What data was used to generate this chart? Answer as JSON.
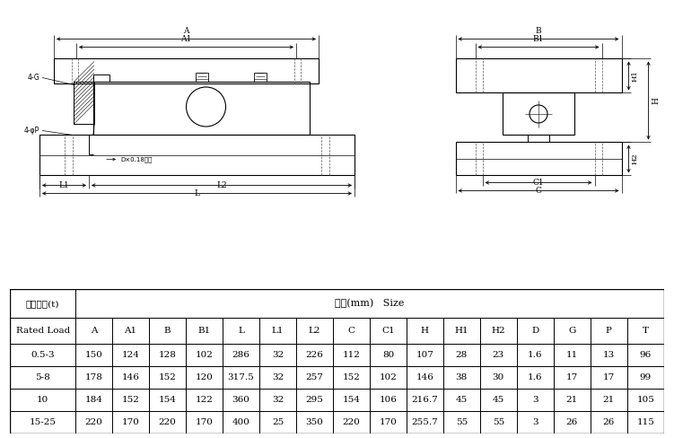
{
  "table_header_row1_col0": "额定载荷(t)",
  "table_header_row1_col1": "尺寸(mm)   Size",
  "table_header_row2": [
    "Rated Load",
    "A",
    "A1",
    "B",
    "B1",
    "L",
    "L1",
    "L2",
    "C",
    "C1",
    "H",
    "H1",
    "H2",
    "D",
    "G",
    "P",
    "T"
  ],
  "table_data": [
    [
      "0.5-3",
      "150",
      "124",
      "128",
      "102",
      "286",
      "32",
      "226",
      "112",
      "80",
      "107",
      "28",
      "23",
      "1.6",
      "11",
      "13",
      "96"
    ],
    [
      "5-8",
      "178",
      "146",
      "152",
      "120",
      "317.5",
      "32",
      "257",
      "152",
      "102",
      "146",
      "38",
      "30",
      "1.6",
      "17",
      "17",
      "99"
    ],
    [
      "10",
      "184",
      "152",
      "154",
      "122",
      "360",
      "32",
      "295",
      "154",
      "106",
      "216.7",
      "45",
      "45",
      "3",
      "21",
      "21",
      "105"
    ],
    [
      "15-25",
      "220",
      "170",
      "220",
      "170",
      "400",
      "25",
      "350",
      "220",
      "170",
      "255.7",
      "55",
      "55",
      "3",
      "26",
      "26",
      "115"
    ]
  ],
  "annot_lg": "4-G",
  "annot_pp": "4-φP",
  "annot_hole": "D×0.18三光",
  "bg_color": "#ffffff",
  "line_color": "#000000"
}
